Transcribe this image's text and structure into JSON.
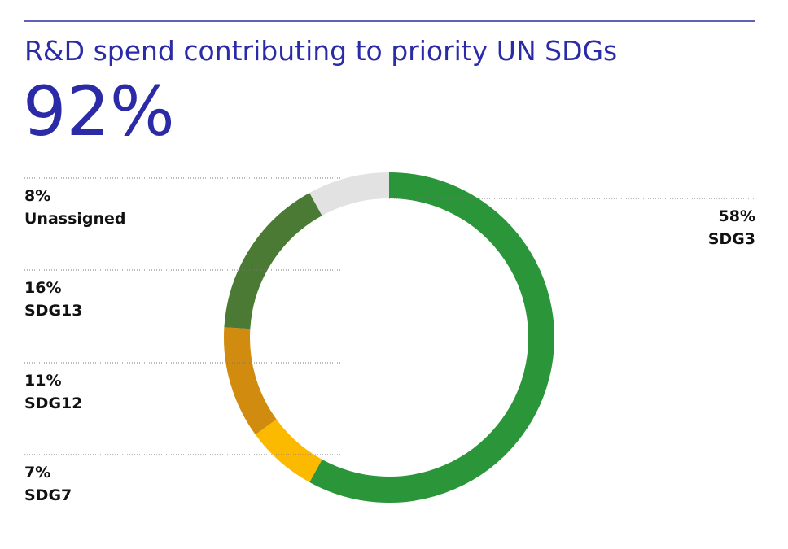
{
  "chart_data": {
    "type": "donut",
    "title": "R&D spend contributing to priority UN SDGs",
    "headline": "92%",
    "categories": [
      "SDG3",
      "SDG7",
      "SDG12",
      "SDG13",
      "Unassigned"
    ],
    "values": [
      58,
      7,
      11,
      16,
      8
    ],
    "value_labels": [
      "58%",
      "7%",
      "11%",
      "16%",
      "8%"
    ],
    "colors": [
      "#2a9639",
      "#fbb900",
      "#d18b0e",
      "#4a7a34",
      "#e2e2e2"
    ]
  }
}
